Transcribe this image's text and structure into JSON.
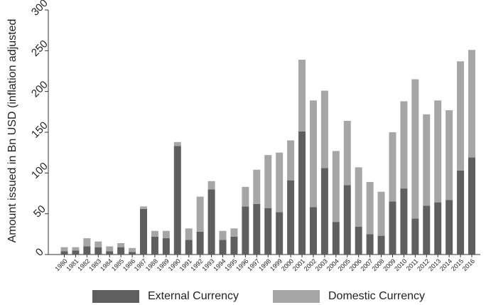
{
  "chart_data": {
    "type": "bar",
    "stacked": true,
    "ylabel": "Amount issued in Bn USD (inflation adjusted",
    "xlabel": "",
    "ylim": [
      0,
      300
    ],
    "yticks": [
      0,
      50,
      100,
      150,
      200,
      250,
      300
    ],
    "grid": false,
    "legend_position": "bottom",
    "categories": [
      "1980",
      "1981",
      "1982",
      "1983",
      "1984",
      "1985",
      "1986",
      "1987",
      "1988",
      "1989",
      "1990",
      "1991",
      "1992",
      "1993",
      "1994",
      "1995",
      "1996",
      "1997",
      "1998",
      "1999",
      "2000",
      "2001",
      "2002",
      "2003",
      "2004",
      "2005",
      "2006",
      "2007",
      "2008",
      "2009",
      "2010",
      "2011",
      "2012",
      "2013",
      "2014",
      "2015",
      "2016"
    ],
    "series": [
      {
        "name": "External Currency",
        "color": "#5f5f5f",
        "values": [
          4,
          5,
          10,
          9,
          4,
          9,
          3,
          56,
          22,
          20,
          133,
          18,
          28,
          80,
          18,
          22,
          59,
          62,
          57,
          52,
          91,
          151,
          58,
          106,
          40,
          85,
          34,
          25,
          23,
          65,
          81,
          44,
          60,
          64,
          67,
          103,
          119
        ]
      },
      {
        "name": "Domestic Currency",
        "color": "#a6a6a6",
        "values": [
          5,
          4,
          10,
          7,
          6,
          5,
          5,
          3,
          7,
          9,
          5,
          14,
          43,
          10,
          11,
          10,
          24,
          42,
          65,
          73,
          49,
          88,
          131,
          95,
          87,
          79,
          73,
          64,
          54,
          85,
          107,
          171,
          112,
          125,
          110,
          134,
          132
        ]
      }
    ]
  }
}
